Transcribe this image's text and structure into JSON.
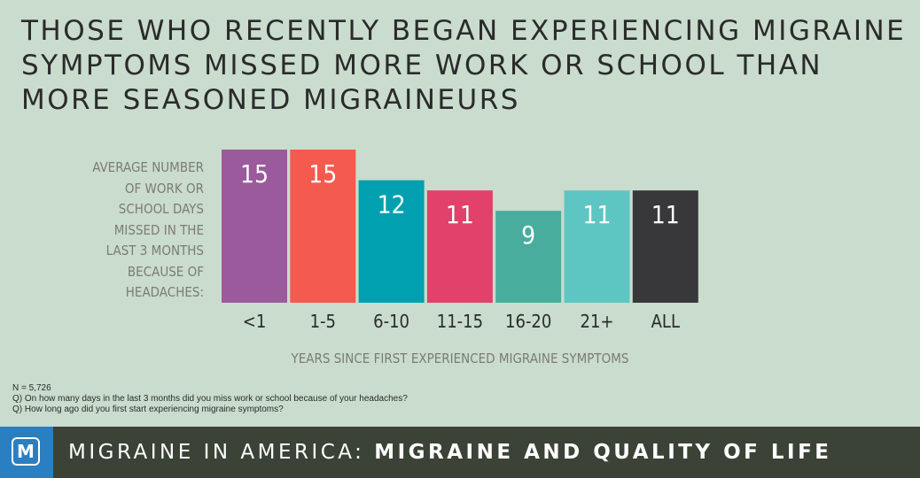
{
  "title_lines": [
    "THOSE WHO RECENTLY BEGAN EXPERIENCING MIGRAINE",
    "SYMPTOMS MISSED MORE WORK OR SCHOOL THAN",
    "MORE SEASONED MIGRAINEURS"
  ],
  "ylabel_lines": [
    "AVERAGE NUMBER",
    "OF WORK OR",
    "SCHOOL DAYS",
    "MISSED IN THE",
    "LAST 3 MONTHS",
    "BECAUSE OF",
    "HEADACHES:"
  ],
  "notes": [
    "N = 5,726",
    "Q) On how many days in the last 3 months did you miss work or school because of your headaches?",
    "Q) How long ago did you first start experiencing migraine symptoms?"
  ],
  "footer": {
    "logo_letter": "M",
    "prefix": "MIGRAINE IN AMERICA:",
    "emphasis": "MIGRAINE AND QUALITY OF LIFE"
  },
  "colors": {
    "background": "#c9dccd",
    "footer_bg": "#3b4236",
    "logo_bg": "#2a7fc0"
  },
  "chart_data": {
    "type": "bar",
    "title": "THOSE WHO RECENTLY BEGAN EXPERIENCING MIGRAINE SYMPTOMS MISSED MORE WORK OR SCHOOL THAN MORE SEASONED MIGRAINEURS",
    "xlabel": "YEARS SINCE FIRST EXPERIENCED MIGRAINE SYMPTOMS",
    "ylabel": "AVERAGE NUMBER OF WORK OR SCHOOL DAYS MISSED IN THE LAST 3 MONTHS BECAUSE OF HEADACHES:",
    "categories": [
      "<1",
      "1-5",
      "6-10",
      "11-15",
      "16-20",
      "21+",
      "ALL"
    ],
    "values": [
      15,
      15,
      12,
      11,
      9,
      11,
      11
    ],
    "bar_colors": [
      "#9a5a9b",
      "#f55a4e",
      "#00a0b0",
      "#e1416a",
      "#48ad9c",
      "#5ec6c2",
      "#38383a"
    ],
    "ylim": [
      0,
      15
    ],
    "data_labels": true,
    "grid": false
  }
}
